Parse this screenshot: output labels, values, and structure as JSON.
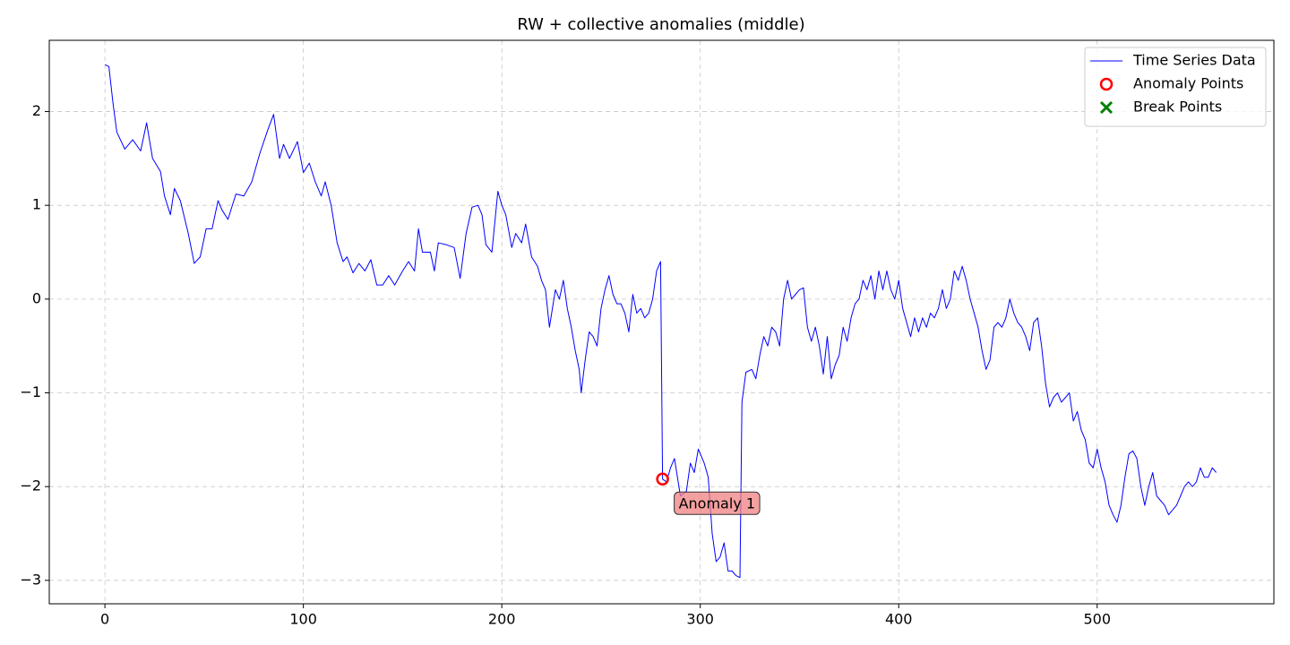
{
  "chart_data": {
    "type": "line",
    "title": "RW + collective anomalies (middle)",
    "x": [
      0,
      2,
      4,
      6,
      10,
      14,
      18,
      21,
      24,
      28,
      30,
      33,
      35,
      38,
      42,
      45,
      48,
      51,
      54,
      57,
      59,
      62,
      66,
      70,
      74,
      78,
      82,
      85,
      88,
      90,
      93,
      97,
      100,
      103,
      106,
      109,
      111,
      114,
      117,
      120,
      122,
      125,
      128,
      131,
      134,
      137,
      140,
      143,
      146,
      150,
      153,
      156,
      158,
      160,
      164,
      166,
      168,
      172,
      176,
      179,
      182,
      185,
      188,
      190,
      192,
      195,
      198,
      200,
      202,
      205,
      207,
      210,
      212,
      215,
      218,
      220,
      222,
      224,
      227,
      229,
      231,
      233,
      235,
      237,
      239,
      240,
      242,
      244,
      246,
      248,
      250,
      252,
      254,
      256,
      258,
      260,
      262,
      264,
      266,
      268,
      270,
      272,
      274,
      276,
      278,
      280,
      281,
      283,
      285,
      287,
      290,
      293,
      295,
      297,
      299,
      302,
      304,
      306,
      308,
      310,
      312,
      314,
      316,
      318,
      320,
      321,
      323,
      326,
      328,
      330,
      332,
      334,
      336,
      338,
      340,
      342,
      344,
      346,
      348,
      350,
      352,
      354,
      356,
      358,
      360,
      362,
      364,
      366,
      368,
      370,
      372,
      374,
      376,
      378,
      380,
      382,
      384,
      386,
      388,
      390,
      392,
      394,
      396,
      398,
      400,
      402,
      404,
      406,
      408,
      410,
      412,
      414,
      416,
      418,
      420,
      422,
      424,
      426,
      428,
      430,
      432,
      434,
      436,
      438,
      440,
      442,
      444,
      446,
      448,
      450,
      452,
      454,
      456,
      458,
      460,
      462,
      464,
      466,
      468,
      470,
      472,
      474,
      476,
      478,
      480,
      482,
      484,
      486,
      488,
      490,
      492,
      494,
      496,
      498,
      500,
      502,
      504,
      506,
      508,
      510,
      512,
      514,
      516,
      518,
      520,
      522,
      524,
      526,
      528,
      530,
      532,
      534,
      536,
      538,
      540,
      542,
      544,
      546,
      548,
      550,
      552,
      554,
      556,
      558,
      560
    ],
    "series": [
      {
        "name": "Time Series Data",
        "color": "#0000ff",
        "kind": "line",
        "values": [
          2.5,
          2.48,
          2.1,
          1.78,
          1.6,
          1.7,
          1.58,
          1.88,
          1.5,
          1.36,
          1.1,
          0.9,
          1.18,
          1.05,
          0.7,
          0.38,
          0.45,
          0.75,
          0.75,
          1.05,
          0.95,
          0.85,
          1.12,
          1.1,
          1.25,
          1.55,
          1.8,
          1.97,
          1.5,
          1.65,
          1.5,
          1.68,
          1.35,
          1.45,
          1.25,
          1.1,
          1.25,
          1.0,
          0.6,
          0.4,
          0.45,
          0.28,
          0.38,
          0.3,
          0.42,
          0.15,
          0.15,
          0.25,
          0.15,
          0.3,
          0.4,
          0.3,
          0.75,
          0.5,
          0.5,
          0.3,
          0.6,
          0.58,
          0.55,
          0.22,
          0.7,
          0.98,
          1.0,
          0.9,
          0.58,
          0.5,
          1.15,
          1.0,
          0.9,
          0.55,
          0.7,
          0.6,
          0.8,
          0.45,
          0.35,
          0.2,
          0.1,
          -0.3,
          0.1,
          0.0,
          0.2,
          -0.1,
          -0.3,
          -0.55,
          -0.75,
          -1.0,
          -0.65,
          -0.35,
          -0.4,
          -0.5,
          -0.1,
          0.1,
          0.25,
          0.05,
          -0.05,
          -0.05,
          -0.15,
          -0.35,
          0.05,
          -0.15,
          -0.1,
          -0.2,
          -0.15,
          0.0,
          0.3,
          0.4,
          -1.92,
          -1.95,
          -1.8,
          -1.7,
          -2.1,
          -2.05,
          -1.75,
          -1.85,
          -1.6,
          -1.75,
          -1.9,
          -2.5,
          -2.8,
          -2.75,
          -2.6,
          -2.9,
          -2.9,
          -2.95,
          -2.97,
          -1.1,
          -0.78,
          -0.75,
          -0.85,
          -0.6,
          -0.4,
          -0.5,
          -0.3,
          -0.35,
          -0.5,
          0.0,
          0.2,
          0.0,
          0.05,
          0.1,
          0.12,
          -0.3,
          -0.45,
          -0.3,
          -0.5,
          -0.8,
          -0.4,
          -0.85,
          -0.7,
          -0.6,
          -0.3,
          -0.45,
          -0.2,
          -0.05,
          0.0,
          0.2,
          0.1,
          0.25,
          0.0,
          0.3,
          0.1,
          0.3,
          0.1,
          0.0,
          0.2,
          -0.1,
          -0.25,
          -0.4,
          -0.2,
          -0.35,
          -0.2,
          -0.3,
          -0.15,
          -0.2,
          -0.1,
          0.1,
          -0.1,
          0.0,
          0.3,
          0.2,
          0.35,
          0.2,
          0.0,
          -0.15,
          -0.3,
          -0.55,
          -0.75,
          -0.65,
          -0.3,
          -0.25,
          -0.3,
          -0.2,
          0.0,
          -0.15,
          -0.25,
          -0.3,
          -0.4,
          -0.55,
          -0.25,
          -0.2,
          -0.5,
          -0.9,
          -1.15,
          -1.05,
          -1.0,
          -1.1,
          -1.05,
          -1.0,
          -1.3,
          -1.2,
          -1.4,
          -1.5,
          -1.75,
          -1.8,
          -1.6,
          -1.8,
          -1.95,
          -2.2,
          -2.3,
          -2.38,
          -2.2,
          -1.9,
          -1.65,
          -1.62,
          -1.7,
          -2.0,
          -2.2,
          -2.0,
          -1.85,
          -2.1,
          -2.15,
          -2.2,
          -2.3,
          -2.25,
          -2.2,
          -2.1,
          -2.0,
          -1.95,
          -2.0,
          -1.95,
          -1.8,
          -1.9,
          -1.9,
          -1.8,
          -1.85
        ]
      },
      {
        "name": "Anomaly Points",
        "color": "#ff0000",
        "kind": "circle",
        "x": [
          281
        ],
        "values": [
          -1.92
        ]
      },
      {
        "name": "Break Points",
        "color": "#008000",
        "kind": "cross",
        "x": [],
        "values": []
      }
    ],
    "annotations": [
      "Anomaly 1"
    ],
    "xlim": [
      -28.05,
      589.05
    ],
    "xticks": [
      0,
      100,
      200,
      300,
      400,
      500
    ],
    "ylim": [
      -3.25,
      2.76
    ],
    "yticks": [
      {
        "value": -3,
        "label": "−3"
      },
      {
        "value": -2,
        "label": "−2"
      },
      {
        "value": -1,
        "label": "−1"
      },
      0,
      1,
      2
    ],
    "grid": true,
    "legend": "upper right"
  }
}
